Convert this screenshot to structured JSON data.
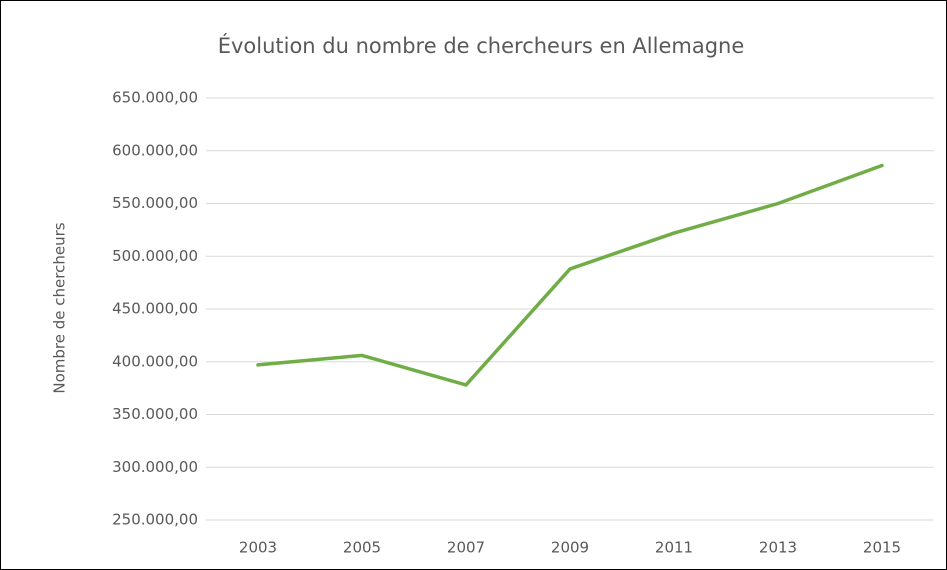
{
  "chart_data": {
    "type": "line",
    "title": "Évolution du nombre de chercheurs en Allemagne",
    "ylabel": "Nombre de chercheurs",
    "categories": [
      "2003",
      "2005",
      "2007",
      "2009",
      "2011",
      "2013",
      "2015"
    ],
    "series": [
      {
        "name": "Nombre de chercheurs",
        "color": "#70ad47",
        "values": [
          397000,
          406000,
          378000,
          488000,
          522000,
          550000,
          586000
        ]
      }
    ],
    "ylim": [
      250000,
      650000
    ],
    "yticks": [
      {
        "value": 250000,
        "label": "250.000,00"
      },
      {
        "value": 300000,
        "label": "300.000,00"
      },
      {
        "value": 350000,
        "label": "350.000,00"
      },
      {
        "value": 400000,
        "label": "400.000,00"
      },
      {
        "value": 450000,
        "label": "450.000,00"
      },
      {
        "value": 500000,
        "label": "500.000,00"
      },
      {
        "value": 550000,
        "label": "550.000,00"
      },
      {
        "value": 600000,
        "label": "600.000,00"
      },
      {
        "value": 650000,
        "label": "650.000,00"
      }
    ],
    "grid": true
  }
}
